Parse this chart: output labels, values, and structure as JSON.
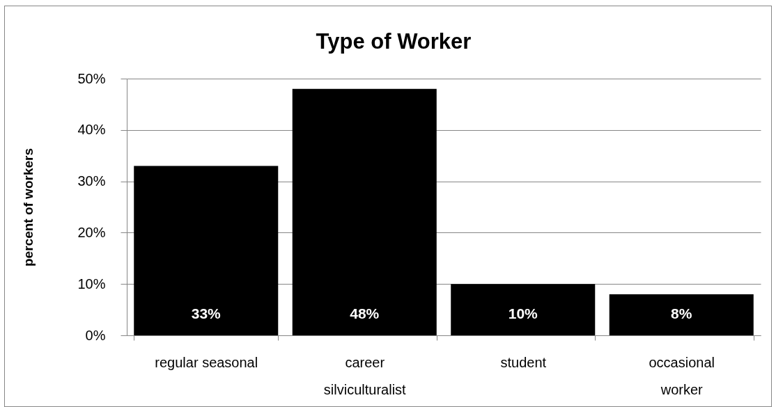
{
  "chart_data": {
    "type": "bar",
    "title": "Type of Worker",
    "ylabel": "percent of workers",
    "categories": [
      "regular seasonal",
      "career silviculturalist",
      "student",
      "occasional worker"
    ],
    "values": [
      33,
      48,
      10,
      8
    ],
    "color": "#000000",
    "value_labels": [
      "33%",
      "48%",
      "10%",
      "8%"
    ],
    "ylim": [
      0,
      50
    ],
    "yticks": [
      {
        "value": 0,
        "label": "0%"
      },
      {
        "value": 10,
        "label": "10%"
      },
      {
        "value": 20,
        "label": "20%"
      },
      {
        "value": 30,
        "label": "30%"
      },
      {
        "value": 40,
        "label": "40%"
      },
      {
        "value": 50,
        "label": "50%"
      }
    ],
    "grid": "y"
  }
}
